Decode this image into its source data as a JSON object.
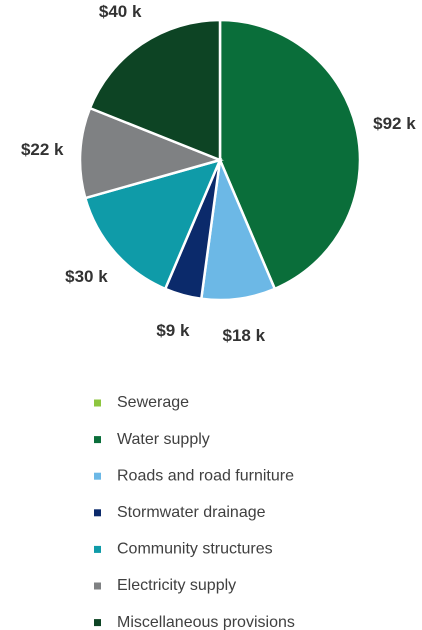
{
  "chart_data": {
    "type": "pie",
    "categories": [
      "Sewerage",
      "Water supply",
      "Roads and road furniture",
      "Stormwater drainage",
      "Community structures",
      "Electricity supply",
      "Miscellaneous provisions"
    ],
    "values": [
      0,
      92,
      18,
      9,
      30,
      22,
      40
    ],
    "value_labels": [
      null,
      "$92 k",
      "$18 k",
      "$9 k",
      "$30 k",
      "$22 k",
      "$40 k"
    ],
    "colors": [
      "#8dc63f",
      "#0a6e3a",
      "#6cb8e6",
      "#0b2a6b",
      "#0f9ba8",
      "#7f8183",
      "#0d4424"
    ],
    "legend": "bottom"
  }
}
